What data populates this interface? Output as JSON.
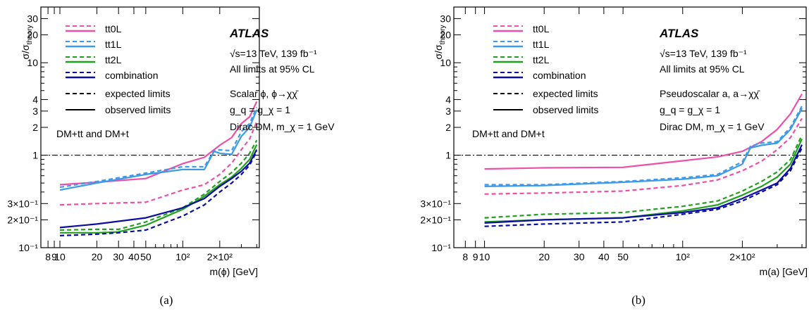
{
  "chart_data": [
    {
      "type": "line",
      "panel": "(a)",
      "caption": "(a)",
      "xlabel": "m(ϕ) [GeV]",
      "ylabel": "σ/σtheory",
      "xscale": "log",
      "yscale": "log",
      "xlim": [
        7,
        420
      ],
      "ylim": [
        0.1,
        40
      ],
      "x_ticks": [
        {
          "v": 8,
          "t": "8"
        },
        {
          "v": 9,
          "t": "9"
        },
        {
          "v": 10,
          "t": "10"
        },
        {
          "v": 20,
          "t": "20"
        },
        {
          "v": 30,
          "t": "30"
        },
        {
          "v": 40,
          "t": "40"
        },
        {
          "v": 50,
          "t": "50"
        },
        {
          "v": 100,
          "t": "10²"
        },
        {
          "v": 200,
          "t": "2×10²"
        }
      ],
      "y_ticks": [
        {
          "v": 0.1,
          "t": "10⁻¹"
        },
        {
          "v": 0.2,
          "t": "2×10⁻¹"
        },
        {
          "v": 0.3,
          "t": "3×10⁻¹"
        },
        {
          "v": 1,
          "t": "1"
        },
        {
          "v": 2,
          "t": "2"
        },
        {
          "v": 3,
          "t": "3"
        },
        {
          "v": 4,
          "t": "4"
        },
        {
          "v": 10,
          "t": "10"
        },
        {
          "v": 20,
          "t": "20"
        },
        {
          "v": 30,
          "t": "30"
        }
      ],
      "atlas_label": "ATLAS",
      "text_lines": [
        "√s=13 TeV, 139 fb⁻¹",
        "All limits at 95% CL",
        "Scalar ϕ, ϕ→χχ̄",
        "g_q = g_χ = 1",
        "Dirac DM, m_χ = 1 GeV"
      ],
      "left_note": "DM+tt and DM+t",
      "legend": {
        "placement": "top-left",
        "entries": [
          "tt0L",
          "tt1L",
          "tt2L",
          "combination"
        ],
        "style_entries": [
          "expected limits",
          "observed limits"
        ]
      },
      "reference_line": 1,
      "series": [
        {
          "name": "tt0L",
          "color": "#ee4fa8",
          "style": "observed",
          "x": [
            10,
            20,
            50,
            100,
            150,
            200,
            250,
            300,
            350,
            400
          ],
          "y": [
            0.48,
            0.51,
            0.56,
            0.81,
            0.95,
            1.28,
            1.55,
            2.2,
            2.6,
            3.8
          ]
        },
        {
          "name": "tt0L",
          "color": "#ee4fa8",
          "style": "expected",
          "x": [
            10,
            20,
            50,
            100,
            150,
            200,
            250,
            300,
            350,
            400
          ],
          "y": [
            0.29,
            0.3,
            0.31,
            0.42,
            0.48,
            0.62,
            0.82,
            1.15,
            1.5,
            2.3
          ]
        },
        {
          "name": "tt1L",
          "color": "#3c9ae8",
          "style": "observed",
          "x": [
            10,
            20,
            50,
            100,
            150,
            180,
            200,
            250,
            300,
            350,
            400
          ],
          "y": [
            0.42,
            0.5,
            0.62,
            0.7,
            0.7,
            1.1,
            1.05,
            1.02,
            1.6,
            2.0,
            3.1
          ]
        },
        {
          "name": "tt1L",
          "color": "#3c9ae8",
          "style": "expected",
          "x": [
            10,
            20,
            50,
            100,
            150,
            180,
            200,
            250,
            300,
            350,
            400
          ],
          "y": [
            0.45,
            0.52,
            0.64,
            0.75,
            0.75,
            1.12,
            1.14,
            1.12,
            1.8,
            2.2,
            3.3
          ]
        },
        {
          "name": "tt2L",
          "color": "#1fa01f",
          "style": "observed",
          "x": [
            10,
            20,
            30,
            50,
            100,
            150,
            200,
            250,
            300,
            350,
            400
          ],
          "y": [
            0.145,
            0.145,
            0.148,
            0.175,
            0.26,
            0.36,
            0.48,
            0.58,
            0.72,
            0.9,
            1.3
          ]
        },
        {
          "name": "tt2L",
          "color": "#1fa01f",
          "style": "expected",
          "x": [
            10,
            20,
            30,
            50,
            100,
            150,
            200,
            250,
            300,
            350,
            400
          ],
          "y": [
            0.155,
            0.158,
            0.158,
            0.19,
            0.27,
            0.38,
            0.52,
            0.65,
            0.82,
            1.05,
            1.45
          ]
        },
        {
          "name": "combination",
          "color": "#0a0ea0",
          "style": "observed",
          "x": [
            10,
            20,
            50,
            100,
            150,
            200,
            250,
            300,
            350,
            400
          ],
          "y": [
            0.165,
            0.18,
            0.21,
            0.27,
            0.34,
            0.46,
            0.56,
            0.67,
            0.82,
            1.15
          ]
        },
        {
          "name": "combination",
          "color": "#0a0ea0",
          "style": "expected",
          "x": [
            10,
            20,
            30,
            50,
            100,
            150,
            200,
            250,
            300,
            350,
            400
          ],
          "y": [
            0.135,
            0.14,
            0.145,
            0.155,
            0.22,
            0.29,
            0.4,
            0.5,
            0.62,
            0.78,
            1.1
          ]
        }
      ]
    },
    {
      "type": "line",
      "panel": "(b)",
      "caption": "(b)",
      "xlabel": "m(a) [GeV]",
      "ylabel": "σ/σtheory",
      "xscale": "log",
      "yscale": "log",
      "xlim": [
        7,
        420
      ],
      "ylim": [
        0.1,
        40
      ],
      "x_ticks": [
        {
          "v": 8,
          "t": "8"
        },
        {
          "v": 9,
          "t": "9"
        },
        {
          "v": 10,
          "t": "10"
        },
        {
          "v": 20,
          "t": "20"
        },
        {
          "v": 30,
          "t": "30"
        },
        {
          "v": 40,
          "t": "40"
        },
        {
          "v": 50,
          "t": "50"
        },
        {
          "v": 100,
          "t": "10²"
        },
        {
          "v": 200,
          "t": "2×10²"
        }
      ],
      "y_ticks": [
        {
          "v": 0.1,
          "t": "10⁻¹"
        },
        {
          "v": 0.2,
          "t": "2×10⁻¹"
        },
        {
          "v": 0.3,
          "t": "3×10⁻¹"
        },
        {
          "v": 1,
          "t": "1"
        },
        {
          "v": 2,
          "t": "2"
        },
        {
          "v": 3,
          "t": "3"
        },
        {
          "v": 4,
          "t": "4"
        },
        {
          "v": 10,
          "t": "10"
        },
        {
          "v": 20,
          "t": "20"
        },
        {
          "v": 30,
          "t": "30"
        }
      ],
      "atlas_label": "ATLAS",
      "text_lines": [
        "√s=13 TeV, 139 fb⁻¹",
        "All limits at 95% CL",
        "Pseudoscalar a, a→χχ̄",
        "g_q = g_χ = 1",
        "Dirac DM, m_χ = 1 GeV"
      ],
      "left_note": "DM+tt and DM+t",
      "legend": {
        "placement": "top-left",
        "entries": [
          "tt0L",
          "tt1L",
          "tt2L",
          "combination"
        ],
        "style_entries": [
          "expected limits",
          "observed limits"
        ]
      },
      "reference_line": 1,
      "series": [
        {
          "name": "tt0L",
          "color": "#ee4fa8",
          "style": "observed",
          "x": [
            10,
            20,
            50,
            100,
            150,
            200,
            250,
            300,
            350,
            400
          ],
          "y": [
            0.71,
            0.73,
            0.74,
            0.87,
            0.96,
            1.1,
            1.4,
            1.9,
            2.8,
            4.6
          ]
        },
        {
          "name": "tt0L",
          "color": "#ee4fa8",
          "style": "expected",
          "x": [
            10,
            20,
            50,
            100,
            150,
            200,
            250,
            300,
            350,
            400
          ],
          "y": [
            0.38,
            0.39,
            0.41,
            0.47,
            0.54,
            0.68,
            0.86,
            1.15,
            1.55,
            2.5
          ]
        },
        {
          "name": "tt1L",
          "color": "#3c9ae8",
          "style": "observed",
          "x": [
            10,
            20,
            50,
            100,
            150,
            200,
            220,
            250,
            300,
            350,
            400
          ],
          "y": [
            0.46,
            0.47,
            0.51,
            0.55,
            0.6,
            0.8,
            1.2,
            1.28,
            1.35,
            1.9,
            3.2
          ]
        },
        {
          "name": "tt1L",
          "color": "#3c9ae8",
          "style": "expected",
          "x": [
            10,
            20,
            50,
            100,
            150,
            200,
            220,
            250,
            300,
            350,
            400
          ],
          "y": [
            0.48,
            0.48,
            0.52,
            0.57,
            0.62,
            0.85,
            1.25,
            1.35,
            1.4,
            2.0,
            3.4
          ]
        },
        {
          "name": "tt2L",
          "color": "#1fa01f",
          "style": "observed",
          "x": [
            10,
            20,
            50,
            100,
            150,
            200,
            250,
            300,
            350,
            400
          ],
          "y": [
            0.19,
            0.2,
            0.21,
            0.25,
            0.29,
            0.37,
            0.46,
            0.58,
            0.8,
            1.5
          ]
        },
        {
          "name": "tt2L",
          "color": "#1fa01f",
          "style": "expected",
          "x": [
            10,
            20,
            50,
            100,
            150,
            200,
            250,
            300,
            350,
            400
          ],
          "y": [
            0.21,
            0.23,
            0.24,
            0.28,
            0.32,
            0.41,
            0.52,
            0.66,
            0.9,
            1.65
          ]
        },
        {
          "name": "combination",
          "color": "#0a0ea0",
          "style": "observed",
          "x": [
            10,
            20,
            50,
            100,
            150,
            200,
            250,
            300,
            350,
            400
          ],
          "y": [
            0.185,
            0.2,
            0.21,
            0.24,
            0.27,
            0.34,
            0.42,
            0.5,
            0.72,
            1.3
          ]
        },
        {
          "name": "combination",
          "color": "#0a0ea0",
          "style": "expected",
          "x": [
            10,
            20,
            50,
            100,
            150,
            200,
            250,
            300,
            350,
            400
          ],
          "y": [
            0.17,
            0.18,
            0.19,
            0.23,
            0.26,
            0.32,
            0.4,
            0.48,
            0.68,
            1.2
          ]
        }
      ]
    }
  ]
}
